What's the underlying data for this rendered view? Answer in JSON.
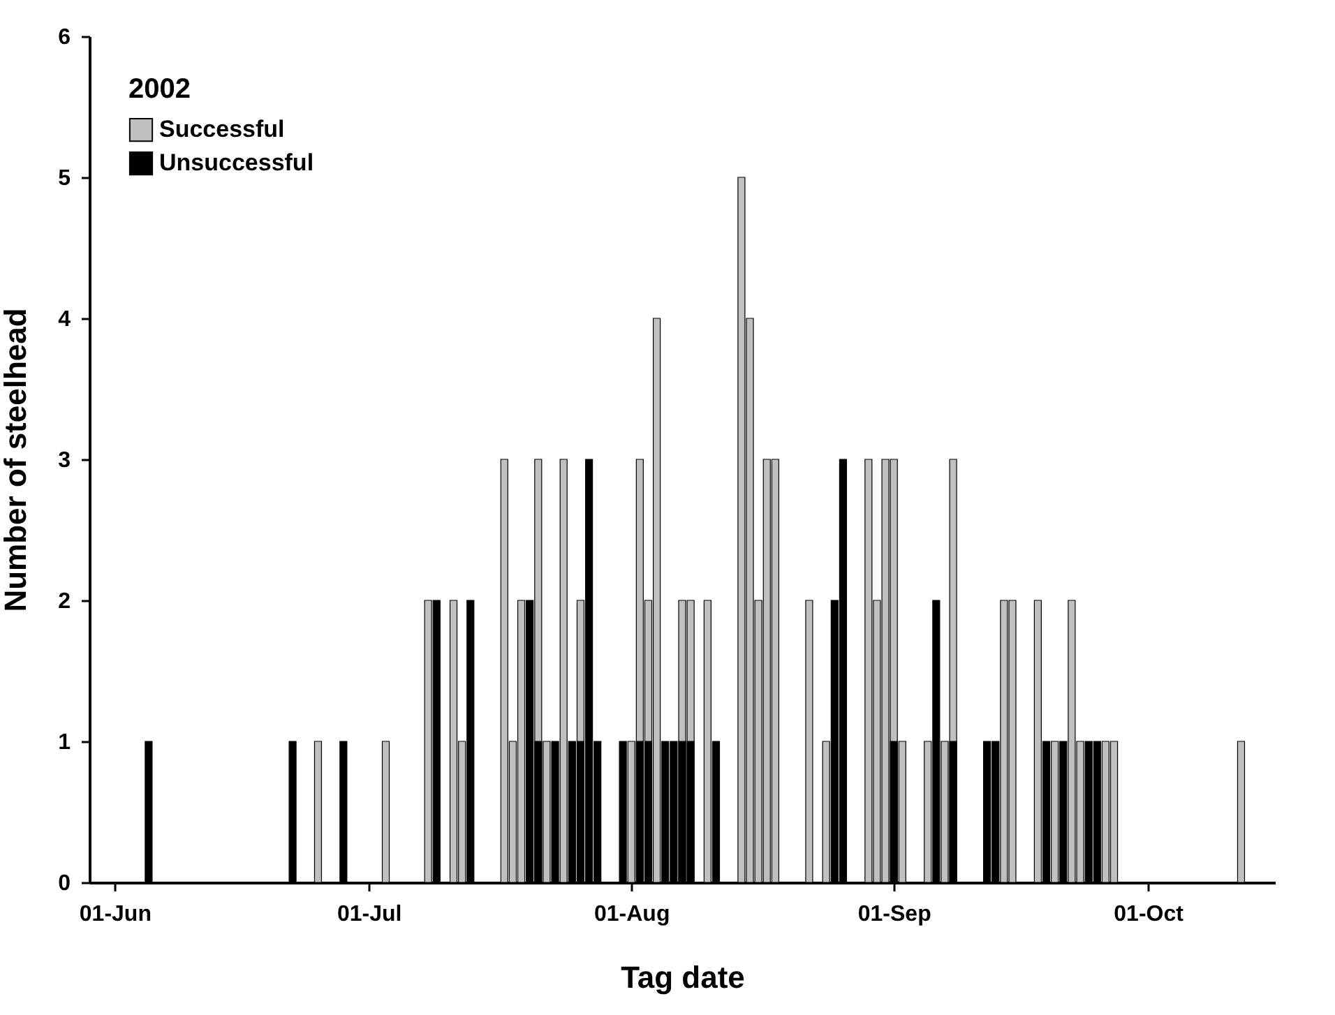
{
  "chart_data": {
    "type": "bar",
    "xlabel": "Tag date",
    "ylabel": "Number of steelhead",
    "legend_title": "2002",
    "legend": "top left",
    "xlim": [
      "2002-05-29",
      "2002-10-16"
    ],
    "xticks": [
      {
        "value": "2002-06-01",
        "label": "01-Jun"
      },
      {
        "value": "2002-07-01",
        "label": "01-Jul"
      },
      {
        "value": "2002-08-01",
        "label": "01-Aug"
      },
      {
        "value": "2002-09-01",
        "label": "01-Sep"
      },
      {
        "value": "2002-10-01",
        "label": "01-Oct"
      }
    ],
    "ylim": [
      0,
      6
    ],
    "yticks": [
      0,
      1,
      2,
      3,
      4,
      5,
      6
    ],
    "grid": false,
    "series": [
      {
        "name": "Successful",
        "color": "#c0c0c0",
        "x": [
          "2002-06-25",
          "2002-07-03",
          "2002-07-08",
          "2002-07-11",
          "2002-07-12",
          "2002-07-17",
          "2002-07-18",
          "2002-07-19",
          "2002-07-21",
          "2002-07-22",
          "2002-07-24",
          "2002-07-26",
          "2002-08-01",
          "2002-08-02",
          "2002-08-03",
          "2002-08-04",
          "2002-08-07",
          "2002-08-08",
          "2002-08-10",
          "2002-08-14",
          "2002-08-15",
          "2002-08-16",
          "2002-08-17",
          "2002-08-18",
          "2002-08-22",
          "2002-08-24",
          "2002-08-29",
          "2002-08-30",
          "2002-08-31",
          "2002-09-01",
          "2002-09-02",
          "2002-09-05",
          "2002-09-07",
          "2002-09-08",
          "2002-09-14",
          "2002-09-15",
          "2002-09-18",
          "2002-09-20",
          "2002-09-22",
          "2002-09-23",
          "2002-09-26",
          "2002-09-27",
          "2002-10-12"
        ],
        "values": [
          1,
          1,
          2,
          2,
          1,
          3,
          1,
          2,
          3,
          1,
          3,
          2,
          1,
          3,
          2,
          4,
          2,
          2,
          2,
          5,
          4,
          2,
          3,
          3,
          2,
          1,
          3,
          2,
          3,
          3,
          1,
          1,
          1,
          3,
          2,
          2,
          2,
          1,
          2,
          1,
          1,
          1,
          1
        ]
      },
      {
        "name": "Unsuccessful",
        "color": "#000000",
        "x": [
          "2002-06-05",
          "2002-06-22",
          "2002-06-28",
          "2002-07-09",
          "2002-07-13",
          "2002-07-20",
          "2002-07-21",
          "2002-07-23",
          "2002-07-25",
          "2002-07-26",
          "2002-07-27",
          "2002-07-28",
          "2002-07-31",
          "2002-08-02",
          "2002-08-03",
          "2002-08-05",
          "2002-08-06",
          "2002-08-07",
          "2002-08-08",
          "2002-08-11",
          "2002-08-25",
          "2002-08-26",
          "2002-09-01",
          "2002-09-06",
          "2002-09-08",
          "2002-09-12",
          "2002-09-13",
          "2002-09-19",
          "2002-09-21",
          "2002-09-24",
          "2002-09-25"
        ],
        "values": [
          1,
          1,
          1,
          2,
          2,
          2,
          1,
          1,
          1,
          1,
          3,
          1,
          1,
          1,
          1,
          1,
          1,
          1,
          1,
          1,
          2,
          3,
          1,
          2,
          1,
          1,
          1,
          1,
          1,
          1,
          1
        ]
      }
    ]
  }
}
